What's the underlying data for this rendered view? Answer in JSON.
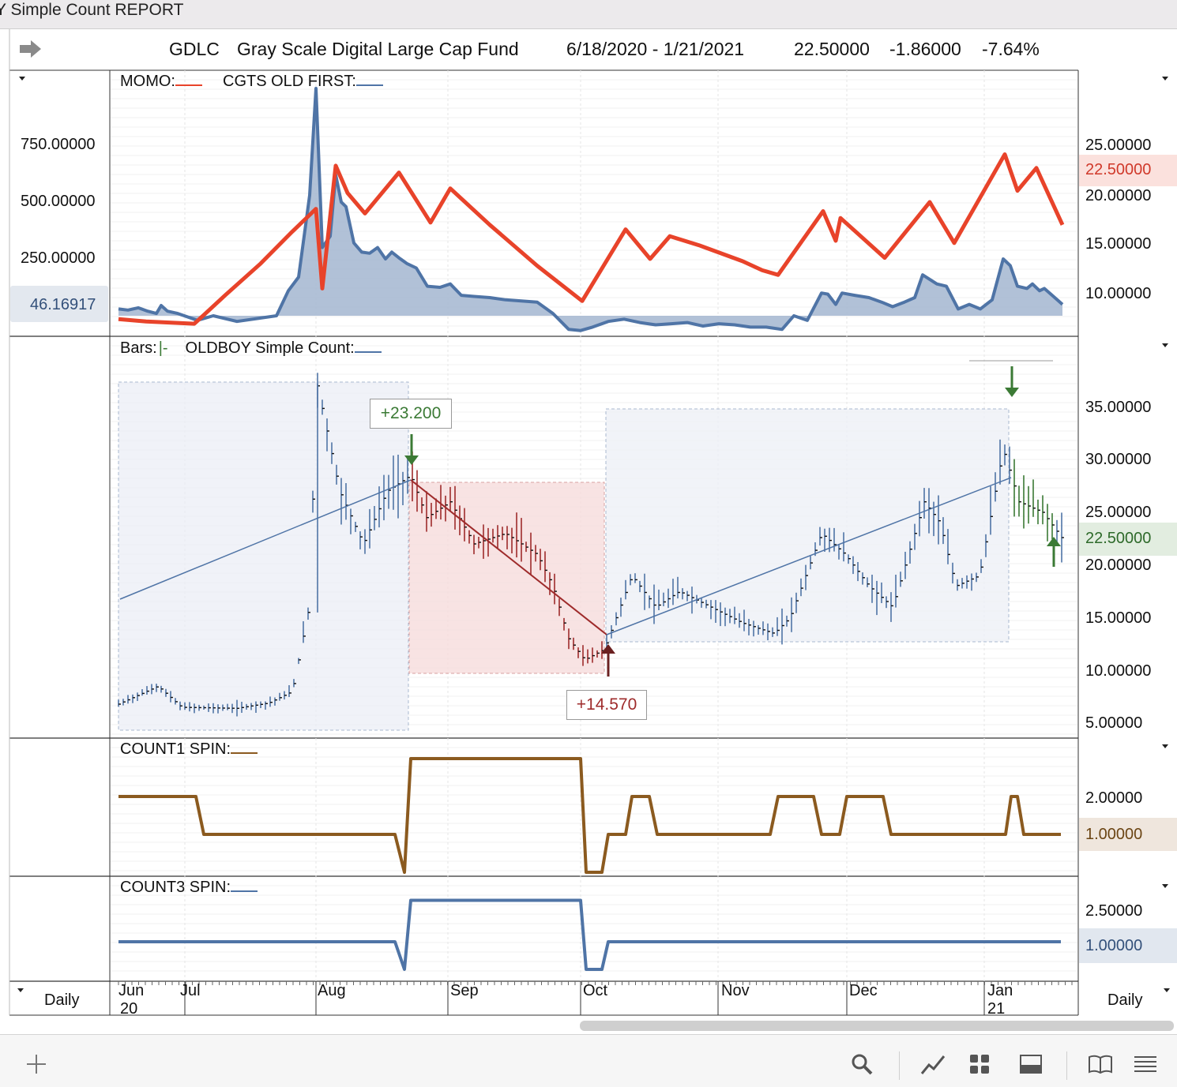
{
  "window": {
    "title": "Y Simple Count REPORT"
  },
  "header": {
    "symbol": "GDLC",
    "name": "Gray Scale Digital Large Cap Fund",
    "date_range": "6/18/2020 - 1/21/2021",
    "last": "22.50000",
    "change": "-1.86000",
    "change_pct": "-7.64%"
  },
  "icons": {
    "arrow": "right-arrow-icon",
    "add": "plus-icon",
    "search": "search-icon",
    "chart": "line-chart-icon",
    "grid": "grid-icon",
    "panel": "panel-icon",
    "book": "book-icon",
    "menu": "menu-icon"
  },
  "panels": {
    "momo": {
      "label1": "MOMO:",
      "label2": "CGTS OLD FIRST:",
      "left_ticks": [
        "750.00000",
        "500.00000",
        "250.00000"
      ],
      "left_badge": "46.16917",
      "right_ticks": [
        "25.00000",
        "20.00000",
        "15.00000",
        "10.00000"
      ],
      "right_badge": "22.50000"
    },
    "bars": {
      "label1": "Bars:",
      "label2": "OLDBOY Simple Count:",
      "right_ticks": [
        "35.00000",
        "30.00000",
        "25.00000",
        "20.00000",
        "15.00000",
        "10.00000",
        "5.00000"
      ],
      "right_badge": "22.50000",
      "gain_label": "+23.200",
      "loss_label": "+14.570"
    },
    "count1": {
      "label": "COUNT1 SPIN:",
      "right_ticks": [
        "2.00000"
      ],
      "right_badge": "1.00000"
    },
    "count3": {
      "label": "COUNT3 SPIN:",
      "right_ticks": [
        "2.50000"
      ],
      "right_badge": "1.00000"
    }
  },
  "xaxis": {
    "months": [
      "Jun",
      "Jul",
      "Aug",
      "Sep",
      "Oct",
      "Nov",
      "Dec",
      "Jan"
    ],
    "years": [
      "20",
      "21"
    ],
    "left_label": "Daily",
    "right_label": "Daily"
  },
  "colors": {
    "red": "#e8432a",
    "blue": "#4f74a6",
    "fill": "#a3b6d0",
    "brown": "#8b5a1f",
    "green": "#3b7a35",
    "darkred": "#9e2b2b"
  },
  "chart_data": {
    "type": "line",
    "x": [
      "Jun",
      "Jul",
      "Aug",
      "Sep",
      "Oct",
      "Nov",
      "Dec",
      "Jan"
    ],
    "momo": {
      "x": [
        150,
        185,
        246,
        285,
        330,
        370,
        400,
        408,
        425,
        440,
        462,
        505,
        545,
        570,
        620,
        680,
        737,
        792,
        823,
        848,
        885,
        940,
        965,
        985,
        1042,
        1058,
        1064,
        1120,
        1177,
        1208,
        1272,
        1288,
        1312,
        1345
      ],
      "y": [
        -15,
        -25,
        -35,
        90,
        230,
        370,
        470,
        120,
        660,
        540,
        450,
        630,
        410,
        560,
        400,
        220,
        65,
        380,
        250,
        350,
        310,
        240,
        200,
        180,
        460,
        330,
        430,
        255,
        500,
        320,
        710,
        550,
        650,
        400
      ]
    },
    "cgts": {
      "x": [
        150,
        162,
        175,
        187,
        198,
        204,
        212,
        225,
        250,
        270,
        300,
        330,
        350,
        365,
        378,
        392,
        400,
        408,
        418,
        425,
        432,
        438,
        448,
        458,
        468,
        478,
        488,
        496,
        505,
        515,
        527,
        541,
        557,
        570,
        584,
        600,
        620,
        640,
        660,
        680,
        700,
        720,
        735,
        750,
        770,
        790,
        810,
        830,
        850,
        870,
        890,
        910,
        930,
        950,
        970,
        990,
        1005,
        1022,
        1040,
        1048,
        1058,
        1066,
        1082,
        1100,
        1116,
        1130,
        1145,
        1158,
        1168,
        1186,
        1198,
        1213,
        1227,
        1241,
        1256,
        1270,
        1279,
        1288,
        1300,
        1307,
        1316,
        1322,
        1332,
        1345
      ],
      "y": [
        30,
        25,
        35,
        20,
        10,
        45,
        20,
        10,
        -20,
        0,
        -25,
        -10,
        0,
        110,
        170,
        530,
        1000,
        300,
        350,
        620,
        500,
        480,
        320,
        280,
        275,
        300,
        250,
        280,
        255,
        230,
        210,
        130,
        125,
        140,
        90,
        85,
        80,
        70,
        65,
        60,
        10,
        -60,
        -65,
        -50,
        -25,
        -15,
        -30,
        -40,
        -35,
        -30,
        -45,
        -35,
        -40,
        -50,
        -50,
        -60,
        0,
        -20,
        100,
        95,
        50,
        100,
        90,
        80,
        60,
        40,
        60,
        80,
        180,
        140,
        130,
        30,
        50,
        30,
        70,
        250,
        220,
        130,
        120,
        140,
        110,
        120,
        90,
        50
      ]
    },
    "price_bars": {
      "open_close_points": [
        [
          150,
          6.8
        ],
        [
          200,
          8.5
        ],
        [
          230,
          6.5
        ],
        [
          300,
          6.4
        ],
        [
          340,
          6.9
        ],
        [
          370,
          8
        ],
        [
          390,
          15.5
        ],
        [
          402,
          37
        ],
        [
          430,
          27
        ],
        [
          460,
          22
        ],
        [
          490,
          27
        ],
        [
          520,
          28.5
        ],
        [
          540,
          24.5
        ],
        [
          570,
          26
        ],
        [
          600,
          22
        ],
        [
          640,
          23
        ],
        [
          680,
          21
        ],
        [
          700,
          18
        ],
        [
          720,
          13
        ],
        [
          740,
          11
        ],
        [
          765,
          12
        ],
        [
          800,
          19
        ],
        [
          830,
          16
        ],
        [
          860,
          17.5
        ],
        [
          900,
          16
        ],
        [
          940,
          14.5
        ],
        [
          980,
          13.5
        ],
        [
          1000,
          15
        ],
        [
          1040,
          23
        ],
        [
          1070,
          21
        ],
        [
          1100,
          18
        ],
        [
          1130,
          16
        ],
        [
          1170,
          26
        ],
        [
          1190,
          24
        ],
        [
          1210,
          18
        ],
        [
          1240,
          19
        ],
        [
          1270,
          31
        ],
        [
          1290,
          26
        ],
        [
          1320,
          25
        ],
        [
          1345,
          22.5
        ]
      ]
    },
    "count1": {
      "x": [
        150,
        248,
        258,
        500,
        512,
        520,
        735,
        742,
        762,
        770,
        792,
        800,
        822,
        832,
        975,
        985,
        1030,
        1040,
        1063,
        1072,
        1118,
        1128,
        1273,
        1280,
        1288,
        1296,
        1343
      ],
      "y": [
        2,
        2,
        1,
        1,
        0,
        3,
        3,
        0,
        0,
        1,
        1,
        2,
        2,
        1,
        1,
        2,
        2,
        1,
        1,
        2,
        2,
        1,
        1,
        2,
        2,
        1,
        1
      ]
    },
    "count3": {
      "x": [
        150,
        500,
        512,
        520,
        735,
        742,
        762,
        770,
        1343
      ],
      "y": [
        1,
        1,
        0,
        2.5,
        2.5,
        0,
        0,
        1,
        1
      ]
    }
  }
}
